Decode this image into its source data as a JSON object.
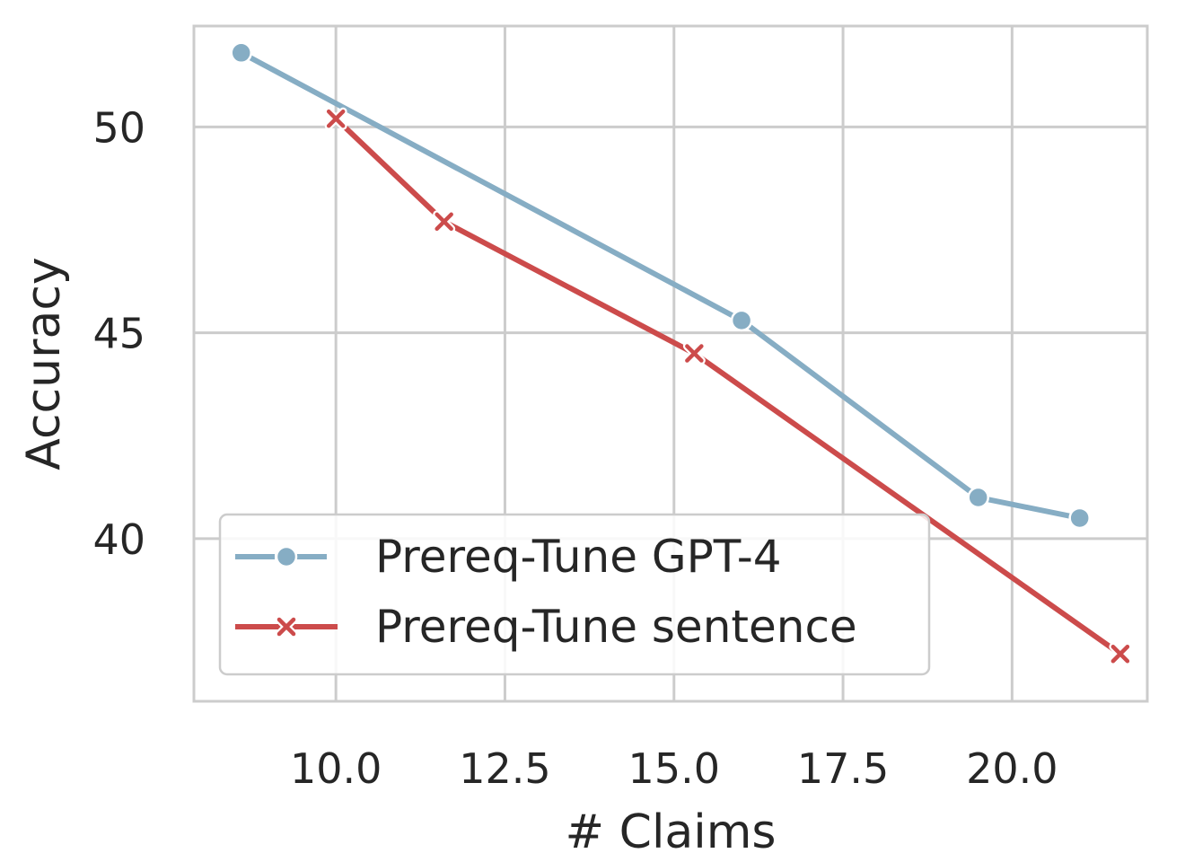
{
  "chart_data": {
    "type": "line",
    "title": "",
    "xlabel": "# Claims",
    "ylabel": "Accuracy",
    "xlim": [
      7.9,
      22.0
    ],
    "ylim": [
      36.05,
      52.45
    ],
    "xticks": [
      10.0,
      12.5,
      15.0,
      17.5,
      20.0
    ],
    "xtick_labels": [
      "10.0",
      "12.5",
      "15.0",
      "17.5",
      "20.0"
    ],
    "yticks": [
      40,
      45,
      50
    ],
    "ytick_labels": [
      "40",
      "45",
      "50"
    ],
    "grid": true,
    "legend_position": "lower-left",
    "series": [
      {
        "name": "Prereq-Tune GPT-4",
        "color": "#86adc4",
        "marker": "circle",
        "x": [
          8.6,
          16.0,
          19.5,
          21.0
        ],
        "y": [
          51.8,
          45.3,
          41.0,
          40.5
        ]
      },
      {
        "name": "Prereq-Tune sentence",
        "color": "#cc4b4b",
        "marker": "x",
        "x": [
          10.0,
          11.6,
          15.3,
          21.6
        ],
        "y": [
          50.2,
          47.7,
          44.5,
          37.2
        ]
      }
    ]
  }
}
